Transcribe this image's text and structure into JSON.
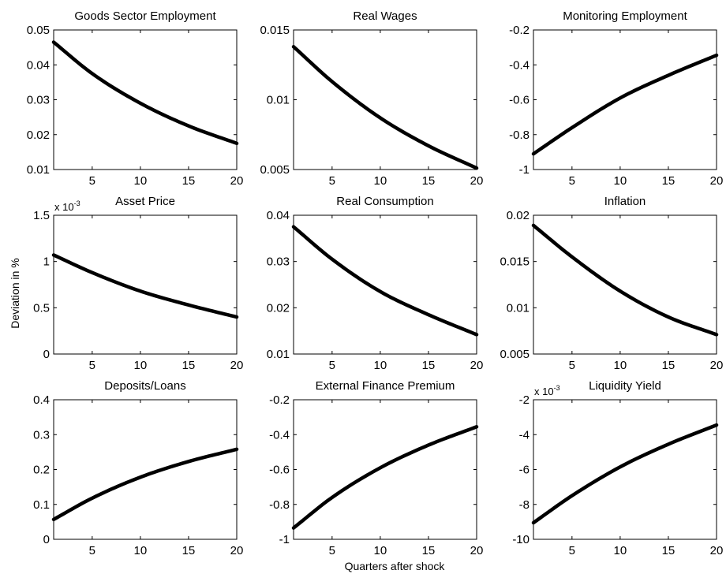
{
  "figure": {
    "ylabel": "Deviation in %",
    "xlabel": "Quarters after shock",
    "line_color": "#000000",
    "background": "#ffffff"
  },
  "chart_data": [
    {
      "type": "line",
      "title": "Goods Sector Employment",
      "xlim": [
        1,
        20
      ],
      "ylim": [
        0.01,
        0.05
      ],
      "xticks": [
        5,
        10,
        15,
        20
      ],
      "yticks": [
        0.01,
        0.02,
        0.03,
        0.04,
        0.05
      ],
      "ytick_labels": [
        "0.01",
        "0.02",
        "0.03",
        "0.04",
        "0.05"
      ],
      "exponent": "",
      "x": [
        1,
        5,
        10,
        15,
        20
      ],
      "y": [
        0.0465,
        0.0375,
        0.029,
        0.0225,
        0.0175
      ]
    },
    {
      "type": "line",
      "title": "Real Wages",
      "xlim": [
        1,
        20
      ],
      "ylim": [
        0.005,
        0.015
      ],
      "xticks": [
        5,
        10,
        15,
        20
      ],
      "yticks": [
        0.005,
        0.01,
        0.015
      ],
      "ytick_labels": [
        "0.005",
        "0.01",
        "0.015"
      ],
      "exponent": "",
      "x": [
        1,
        5,
        10,
        15,
        20
      ],
      "y": [
        0.0138,
        0.0113,
        0.0087,
        0.0067,
        0.0051
      ]
    },
    {
      "type": "line",
      "title": "Monitoring Employment",
      "xlim": [
        1,
        20
      ],
      "ylim": [
        -1,
        -0.2
      ],
      "xticks": [
        5,
        10,
        15,
        20
      ],
      "yticks": [
        -1,
        -0.8,
        -0.6,
        -0.4,
        -0.2
      ],
      "ytick_labels": [
        "-1",
        "-0.8",
        "-0.6",
        "-0.4",
        "-0.2"
      ],
      "exponent": "",
      "x": [
        1,
        5,
        10,
        15,
        20
      ],
      "y": [
        -0.91,
        -0.76,
        -0.59,
        -0.46,
        -0.345
      ]
    },
    {
      "type": "line",
      "title": "Asset Price",
      "xlim": [
        1,
        20
      ],
      "ylim": [
        0,
        1.5
      ],
      "xticks": [
        5,
        10,
        15,
        20
      ],
      "yticks": [
        0,
        0.5,
        1,
        1.5
      ],
      "ytick_labels": [
        "0",
        "0.5",
        "1",
        "1.5"
      ],
      "exponent": "-3",
      "x": [
        1,
        5,
        10,
        15,
        20
      ],
      "y": [
        1.07,
        0.88,
        0.68,
        0.53,
        0.4
      ]
    },
    {
      "type": "line",
      "title": "Real Consumption",
      "xlim": [
        1,
        20
      ],
      "ylim": [
        0.01,
        0.04
      ],
      "xticks": [
        5,
        10,
        15,
        20
      ],
      "yticks": [
        0.01,
        0.02,
        0.03,
        0.04
      ],
      "ytick_labels": [
        "0.01",
        "0.02",
        "0.03",
        "0.04"
      ],
      "exponent": "",
      "x": [
        1,
        5,
        10,
        15,
        20
      ],
      "y": [
        0.0375,
        0.0305,
        0.0235,
        0.0185,
        0.0142
      ]
    },
    {
      "type": "line",
      "title": "Inflation",
      "xlim": [
        1,
        20
      ],
      "ylim": [
        0.005,
        0.02
      ],
      "xticks": [
        5,
        10,
        15,
        20
      ],
      "yticks": [
        0.005,
        0.01,
        0.015,
        0.02
      ],
      "ytick_labels": [
        "0.005",
        "0.01",
        "0.015",
        "0.02"
      ],
      "exponent": "",
      "x": [
        1,
        5,
        10,
        15,
        20
      ],
      "y": [
        0.0189,
        0.0155,
        0.0118,
        0.009,
        0.0071
      ]
    },
    {
      "type": "line",
      "title": "Deposits/Loans",
      "xlim": [
        1,
        20
      ],
      "ylim": [
        0,
        0.4
      ],
      "xticks": [
        5,
        10,
        15,
        20
      ],
      "yticks": [
        0,
        0.1,
        0.2,
        0.3,
        0.4
      ],
      "ytick_labels": [
        "0",
        "0.1",
        "0.2",
        "0.3",
        "0.4"
      ],
      "exponent": "",
      "x": [
        1,
        5,
        10,
        15,
        20
      ],
      "y": [
        0.057,
        0.118,
        0.178,
        0.223,
        0.258
      ]
    },
    {
      "type": "line",
      "title": "External Finance Premium",
      "xlim": [
        1,
        20
      ],
      "ylim": [
        -1,
        -0.2
      ],
      "xticks": [
        5,
        10,
        15,
        20
      ],
      "yticks": [
        -1,
        -0.8,
        -0.6,
        -0.4,
        -0.2
      ],
      "ytick_labels": [
        "-1",
        "-0.8",
        "-0.6",
        "-0.4",
        "-0.2"
      ],
      "exponent": "",
      "x": [
        1,
        5,
        10,
        15,
        20
      ],
      "y": [
        -0.935,
        -0.76,
        -0.59,
        -0.46,
        -0.355
      ]
    },
    {
      "type": "line",
      "title": "Liquidity Yield",
      "xlim": [
        1,
        20
      ],
      "ylim": [
        -10,
        -2
      ],
      "xticks": [
        5,
        10,
        15,
        20
      ],
      "yticks": [
        -10,
        -8,
        -6,
        -4,
        -2
      ],
      "ytick_labels": [
        "-10",
        "-8",
        "-6",
        "-4",
        "-2"
      ],
      "exponent": "-3",
      "x": [
        1,
        5,
        10,
        15,
        20
      ],
      "y": [
        -9.05,
        -7.5,
        -5.85,
        -4.55,
        -3.45
      ]
    }
  ]
}
